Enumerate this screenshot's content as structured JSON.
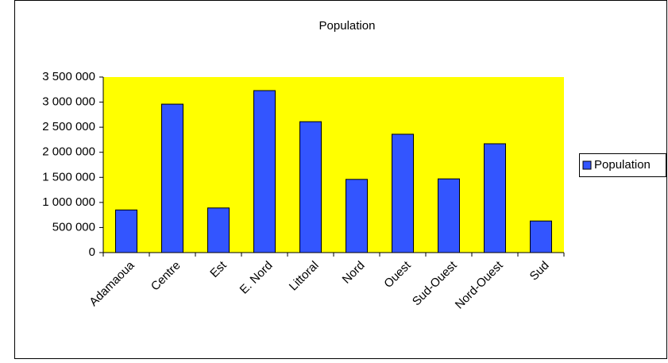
{
  "chart_data": {
    "type": "bar",
    "title": "Population",
    "categories": [
      "Adamaoua",
      "Centre",
      "Est",
      "E. Nord",
      "Littoral",
      "Nord",
      "Ouest",
      "Sud-Ouest",
      "Nord-Ouest",
      "Sud"
    ],
    "series": [
      {
        "name": "Population",
        "color": "#3355ff",
        "values": [
          850000,
          2960000,
          890000,
          3230000,
          2610000,
          1460000,
          2360000,
          1470000,
          2170000,
          630000
        ]
      }
    ],
    "ylim": [
      0,
      3500000
    ],
    "yticks": [
      0,
      {
        "value": 500000,
        "label": "500 000"
      },
      {
        "value": 1000000,
        "label": "1 000 000"
      },
      {
        "value": 1500000,
        "label": "1 500 000"
      },
      {
        "value": 2000000,
        "label": "2 000 000"
      },
      {
        "value": 2500000,
        "label": "2 500 000"
      },
      {
        "value": 3000000,
        "label": "3 000 000"
      },
      {
        "value": 3500000,
        "label": "3 500 000"
      }
    ],
    "plot_background": "#ffff00",
    "legend": "right"
  }
}
